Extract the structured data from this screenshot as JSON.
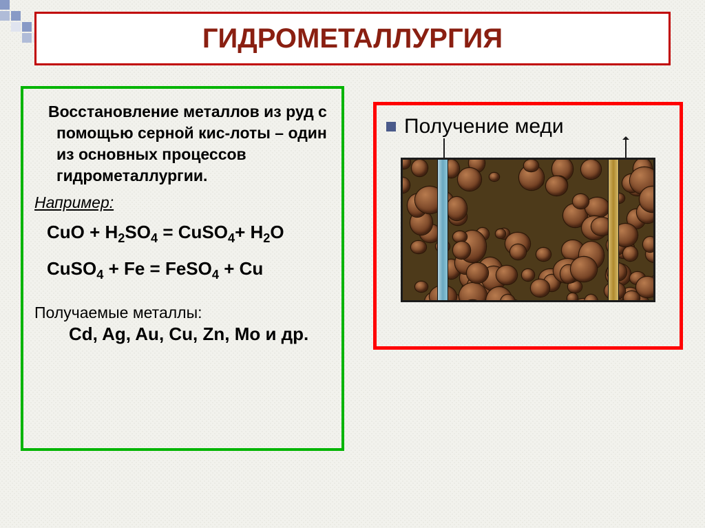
{
  "colors": {
    "title_border": "#c00000",
    "title_text": "#8a1f11",
    "left_border": "#00b400",
    "right_border": "#ff0000",
    "bullet": "#4a5a8a",
    "text": "#111111",
    "def_text": "#000000"
  },
  "corner_pattern": [
    "#889ac6",
    "",
    "",
    "",
    "#b0bcd8",
    "#889ac6",
    "",
    "",
    "",
    "#e0e4ef",
    "#889ac6",
    "",
    "",
    "",
    "#b0bcd8",
    "#e0e4ef"
  ],
  "title": "ГИДРОМЕТАЛЛУРГИЯ",
  "left": {
    "definition": "Восстановление металлов из руд с помощью серной кис-лоты – один из основных процессов гидрометаллургии.",
    "example_label": "Например:",
    "reaction1_html": "CuO + H<sub>2</sub>SO<sub>4</sub> = CuSO<sub>4</sub>+ H<sub>2</sub>O",
    "reaction2_html": "CuSO<sub>4</sub> + Fe = FeSO<sub>4</sub> + Cu",
    "obtained_label": "Получаемые металлы:",
    "metals": "Cd, Ag, Au, Cu, Zn, Mo и др."
  },
  "right": {
    "title": "Получение меди"
  }
}
